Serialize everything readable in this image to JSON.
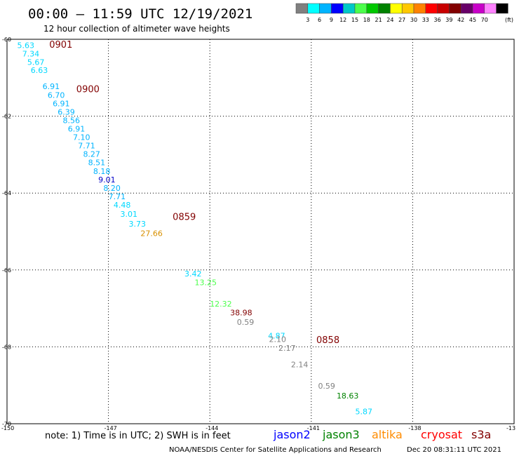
{
  "header": {
    "title": "00:00 – 11:59 UTC 12/19/2021",
    "subtitle": "12 hour collection of altimeter wave heights"
  },
  "color_scale": {
    "boxes": [
      "#808080",
      "#00ffff",
      "#00b4ff",
      "#0000ff",
      "#00c8c8",
      "#4cff4c",
      "#00c800",
      "#008200",
      "#ffff00",
      "#ffc800",
      "#ff8200",
      "#ff0000",
      "#c80000",
      "#820000",
      "#690069",
      "#c800c8",
      "#ff82ff",
      "#000000"
    ],
    "labels": [
      "3",
      "6",
      "9",
      "12",
      "15",
      "18",
      "21",
      "24",
      "27",
      "30",
      "33",
      "36",
      "39",
      "42",
      "45",
      "70"
    ],
    "unit": "(ft)"
  },
  "chart_data": {
    "type": "scatter",
    "xlim": [
      -150,
      -135
    ],
    "ylim": [
      -70,
      -60
    ],
    "x_ticks": [
      -147,
      -144,
      -141,
      -138
    ],
    "x_tick_labels": [
      "-147",
      "-144",
      "-141",
      "-138"
    ],
    "x_corner_labels": [
      "-150",
      "-13"
    ],
    "y_ticks": [
      -60,
      -62,
      -64,
      -66,
      -68,
      -70
    ],
    "y_tick_labels": [
      "-60",
      "-62",
      "-64",
      "-66",
      "-68",
      "-70"
    ],
    "grid": true,
    "points": [
      {
        "lon": -149.7,
        "lat": -60.23,
        "label": "5.63",
        "color": "#00d8ff"
      },
      {
        "lon": -149.55,
        "lat": -60.45,
        "label": "7.34",
        "color": "#00d8ff"
      },
      {
        "lon": -149.4,
        "lat": -60.67,
        "label": "5.67",
        "color": "#00d8ff"
      },
      {
        "lon": -149.3,
        "lat": -60.88,
        "label": "6.63",
        "color": "#00d8ff"
      },
      {
        "lon": -148.95,
        "lat": -61.3,
        "label": "6.91",
        "color": "#00b4ff"
      },
      {
        "lon": -148.8,
        "lat": -61.52,
        "label": "6.70",
        "color": "#00b4ff"
      },
      {
        "lon": -148.65,
        "lat": -61.74,
        "label": "6.91",
        "color": "#00b4ff"
      },
      {
        "lon": -148.5,
        "lat": -61.96,
        "label": "6.39",
        "color": "#00b4ff"
      },
      {
        "lon": -148.35,
        "lat": -62.18,
        "label": "8.56",
        "color": "#00b4ff"
      },
      {
        "lon": -148.2,
        "lat": -62.4,
        "label": "6.91",
        "color": "#00b4ff"
      },
      {
        "lon": -148.05,
        "lat": -62.62,
        "label": "7.10",
        "color": "#00b4ff"
      },
      {
        "lon": -147.9,
        "lat": -62.84,
        "label": "7.71",
        "color": "#00b4ff"
      },
      {
        "lon": -147.75,
        "lat": -63.06,
        "label": "8.27",
        "color": "#00b4ff"
      },
      {
        "lon": -147.6,
        "lat": -63.28,
        "label": "8.51",
        "color": "#00b4ff"
      },
      {
        "lon": -147.45,
        "lat": -63.5,
        "label": "8.18",
        "color": "#00b4ff"
      },
      {
        "lon": -147.3,
        "lat": -63.72,
        "label": "9.01",
        "color": "#0000c8"
      },
      {
        "lon": -147.15,
        "lat": -63.94,
        "label": "8.20",
        "color": "#00b4ff"
      },
      {
        "lon": -147.0,
        "lat": -64.16,
        "label": "7.71",
        "color": "#00b4ff"
      },
      {
        "lon": -146.85,
        "lat": -64.38,
        "label": "4.48",
        "color": "#00d8ff"
      },
      {
        "lon": -146.65,
        "lat": -64.62,
        "label": "3.01",
        "color": "#00d8ff"
      },
      {
        "lon": -146.4,
        "lat": -64.87,
        "label": "3.73",
        "color": "#00d8ff"
      },
      {
        "lon": -146.05,
        "lat": -65.12,
        "label": "27.66",
        "color": "#d89000"
      },
      {
        "lon": -144.75,
        "lat": -66.17,
        "label": "3.42",
        "color": "#00d8ff"
      },
      {
        "lon": -144.45,
        "lat": -66.4,
        "label": "13.25",
        "color": "#4cff4c"
      },
      {
        "lon": -144.0,
        "lat": -66.95,
        "label": "12.32",
        "color": "#4cff4c"
      },
      {
        "lon": -143.4,
        "lat": -67.18,
        "label": "38.98",
        "color": "#820000"
      },
      {
        "lon": -143.2,
        "lat": -67.43,
        "label": "0.59",
        "color": "#808080"
      },
      {
        "lon": -142.28,
        "lat": -67.78,
        "label": "4.87",
        "color": "#00d8ff"
      },
      {
        "lon": -142.25,
        "lat": -67.87,
        "label": "2.10",
        "color": "#808080"
      },
      {
        "lon": -141.97,
        "lat": -68.1,
        "label": "2.17",
        "color": "#808080"
      },
      {
        "lon": -141.6,
        "lat": -68.53,
        "label": "2.14",
        "color": "#808080"
      },
      {
        "lon": -140.8,
        "lat": -69.09,
        "label": "0.59",
        "color": "#808080"
      },
      {
        "lon": -140.25,
        "lat": -69.34,
        "label": "18.63",
        "color": "#008200"
      },
      {
        "lon": -139.7,
        "lat": -69.75,
        "label": "5.87",
        "color": "#00d8ff"
      }
    ],
    "time_markers": [
      {
        "lon": -148.75,
        "lat": -60.22,
        "label": "0901",
        "color": "#820000"
      },
      {
        "lon": -147.95,
        "lat": -61.38,
        "label": "0900",
        "color": "#820000"
      },
      {
        "lon": -145.1,
        "lat": -64.7,
        "label": "0859",
        "color": "#820000"
      },
      {
        "lon": -140.85,
        "lat": -67.9,
        "label": "0858",
        "color": "#820000"
      }
    ]
  },
  "footer": {
    "note": "note: 1) Time is in UTC; 2) SWH is in feet",
    "satellites": [
      {
        "name": "jason2",
        "color": "#0000ff"
      },
      {
        "name": "jason3",
        "color": "#008200"
      },
      {
        "name": "altika",
        "color": "#ff8c00"
      },
      {
        "name": "cryosat",
        "color": "#ff0000"
      },
      {
        "name": "s3a",
        "color": "#820000"
      }
    ],
    "credit": "NOAA/NESDIS Center for Satellite Applications and Research",
    "timestamp": "Dec 20 08:31:11 UTC 2021"
  }
}
